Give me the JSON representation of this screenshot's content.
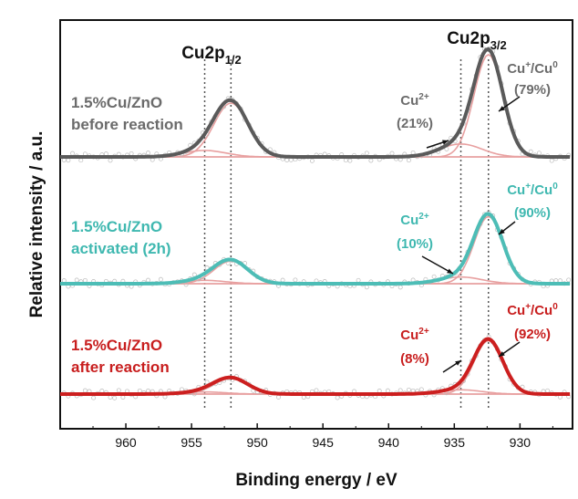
{
  "chart_data": {
    "type": "line",
    "title": "",
    "xlabel": "Binding energy / eV",
    "ylabel": "Relative intensity / a.u.",
    "xlim": [
      965,
      926
    ],
    "x_ticks": [
      960,
      955,
      950,
      945,
      940,
      935,
      930
    ],
    "x_reversed": true,
    "y_ticks_shown": false,
    "reference_lines_eV": [
      954.0,
      952.0,
      934.5,
      932.4
    ],
    "peak_headers": [
      {
        "text": "Cu2p",
        "sub": "1/2",
        "x_eV": 952.5
      },
      {
        "text": "Cu2p",
        "sub": "3/2",
        "x_eV": 932.3
      }
    ],
    "series": [
      {
        "name": "1.5%Cu/ZnO before reaction",
        "label_lines": [
          "1.5%Cu/ZnO",
          "before reaction"
        ],
        "color": "#5a5a5a",
        "label_color": "#6b6b6b",
        "baseline": 0.0,
        "components": [
          {
            "center": 952.0,
            "height": 0.5,
            "width": 1.3
          },
          {
            "center": 954.0,
            "height": 0.06,
            "width": 1.6
          },
          {
            "center": 932.4,
            "height": 0.95,
            "width": 1.1
          },
          {
            "center": 934.5,
            "height": 0.12,
            "width": 1.6
          }
        ],
        "annotations": [
          {
            "ion": "Cu",
            "sup": "2+",
            "pct": "(21%)",
            "x_eV": 936.8
          },
          {
            "ion": "Cu",
            "sup": "+",
            "ion2": "/Cu",
            "sup2": "0",
            "pct": "(79%)",
            "x_eV": 929.0
          }
        ]
      },
      {
        "name": "1.5%Cu/ZnO activated (2h)",
        "label_lines": [
          "1.5%Cu/ZnO",
          "activated (2h)"
        ],
        "color": "#4dbdb6",
        "label_color": "#3fb8b0",
        "baseline": 0.0,
        "components": [
          {
            "center": 952.0,
            "height": 0.27,
            "width": 1.3
          },
          {
            "center": 954.0,
            "height": 0.04,
            "width": 1.6
          },
          {
            "center": 932.4,
            "height": 0.8,
            "width": 1.1
          },
          {
            "center": 934.5,
            "height": 0.08,
            "width": 1.6
          }
        ],
        "annotations": [
          {
            "ion": "Cu",
            "sup": "2+",
            "pct": "(10%)",
            "x_eV": 936.8
          },
          {
            "ion": "Cu",
            "sup": "+",
            "ion2": "/Cu",
            "sup2": "0",
            "pct": "(90%)",
            "x_eV": 929.0
          }
        ]
      },
      {
        "name": "1.5%Cu/ZnO after reaction",
        "label_lines": [
          "1.5%Cu/ZnO",
          "after reaction"
        ],
        "color": "#cc1f1f",
        "label_color": "#c81e1e",
        "baseline": 0.0,
        "components": [
          {
            "center": 952.0,
            "height": 0.22,
            "width": 1.3
          },
          {
            "center": 954.0,
            "height": 0.03,
            "width": 1.6
          },
          {
            "center": 932.4,
            "height": 0.75,
            "width": 1.1
          },
          {
            "center": 934.5,
            "height": 0.06,
            "width": 1.6
          }
        ],
        "annotations": [
          {
            "ion": "Cu",
            "sup": "2+",
            "pct": "(8%)",
            "x_eV": 936.8
          },
          {
            "ion": "Cu",
            "sup": "+",
            "ion2": "/Cu",
            "sup2": "0",
            "pct": "(92%)",
            "x_eV": 929.0
          }
        ]
      }
    ],
    "component_color": "#e8a0a0"
  }
}
